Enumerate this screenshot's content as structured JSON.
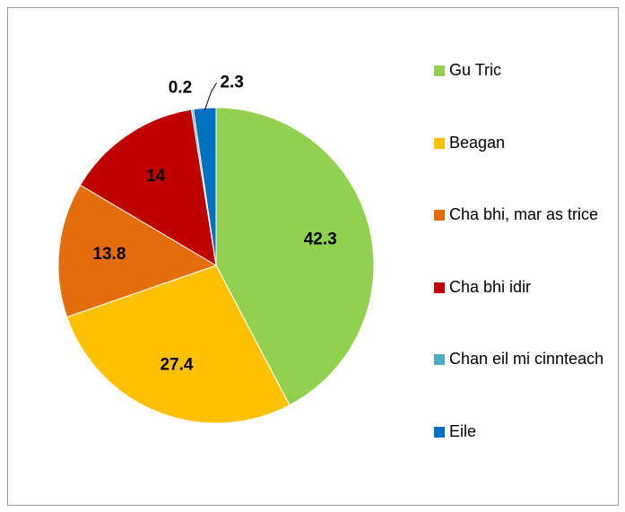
{
  "chart_data": {
    "type": "pie",
    "categories": [
      "Gu Tric",
      "Beagan",
      "Cha bhi, mar as trice",
      "Cha bhi idir",
      "Chan eil mi cinnteach",
      "Eile"
    ],
    "values": [
      42.3,
      27.4,
      13.8,
      14,
      0.2,
      2.3
    ],
    "colors": [
      "#92d050",
      "#ffc000",
      "#e46c0a",
      "#c00000",
      "#4bacc6",
      "#0070c0"
    ],
    "legend": "right"
  }
}
